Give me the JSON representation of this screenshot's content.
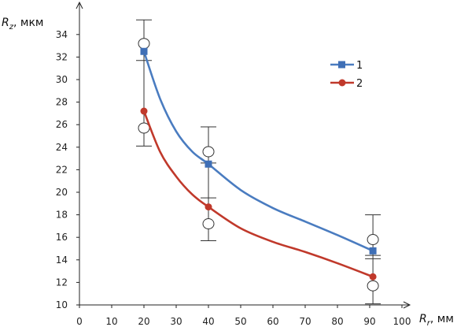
{
  "chart_data": {
    "type": "line",
    "title": "",
    "xlabel": "R, мм",
    "ylabel": "Rz, мкм",
    "x_label_parts": {
      "symbol": "R",
      "subscript": "r",
      "unit": "мм"
    },
    "y_label_parts": {
      "symbol": "R",
      "subscript": "z",
      "unit": "мкм"
    },
    "xlim": [
      0,
      100
    ],
    "ylim": [
      10,
      35
    ],
    "x_ticks": [
      0,
      10,
      20,
      30,
      40,
      50,
      60,
      70,
      80,
      90,
      100
    ],
    "y_ticks": [
      10,
      12,
      14,
      16,
      18,
      20,
      22,
      24,
      26,
      28,
      30,
      32,
      34
    ],
    "legend_position": "right",
    "grid": false,
    "series": [
      {
        "name": "1",
        "color": "#4a7cc0",
        "marker": "square",
        "marker_color": "#3f6fb6",
        "x": [
          20,
          40,
          91
        ],
        "y": [
          32.5,
          22.5,
          14.8
        ],
        "curve": [
          [
            20,
            32.5
          ],
          [
            25,
            28.3
          ],
          [
            30,
            25.4
          ],
          [
            35,
            23.6
          ],
          [
            40,
            22.5
          ],
          [
            50,
            20.2
          ],
          [
            60,
            18.6
          ],
          [
            70,
            17.4
          ],
          [
            80,
            16.2
          ],
          [
            91,
            14.8
          ]
        ]
      },
      {
        "name": "2",
        "color": "#c0392b",
        "marker": "circle",
        "marker_color": "#c0392b",
        "x": [
          20,
          40,
          91
        ],
        "y": [
          27.2,
          18.7,
          12.5
        ],
        "curve": [
          [
            20,
            27.2
          ],
          [
            25,
            23.6
          ],
          [
            30,
            21.4
          ],
          [
            35,
            19.8
          ],
          [
            40,
            18.7
          ],
          [
            50,
            16.8
          ],
          [
            60,
            15.6
          ],
          [
            70,
            14.7
          ],
          [
            80,
            13.7
          ],
          [
            91,
            12.5
          ]
        ]
      }
    ],
    "error_bars": [
      {
        "x": 20,
        "top": 35.3,
        "bottom": 31.7,
        "circles": [
          33.2,
          25.7
        ],
        "bottom_cap": 24.1
      },
      {
        "x": 40,
        "top": 25.8,
        "bottom": 22.6,
        "circles": [
          23.6,
          17.2
        ],
        "bottom_cap": 15.7,
        "cap2": 19.5
      },
      {
        "x": 91,
        "top": 18.0,
        "bottom": 14.4,
        "circles": [
          15.8,
          11.7
        ],
        "bottom_cap": 10.1,
        "cap2": 14.1
      }
    ]
  }
}
